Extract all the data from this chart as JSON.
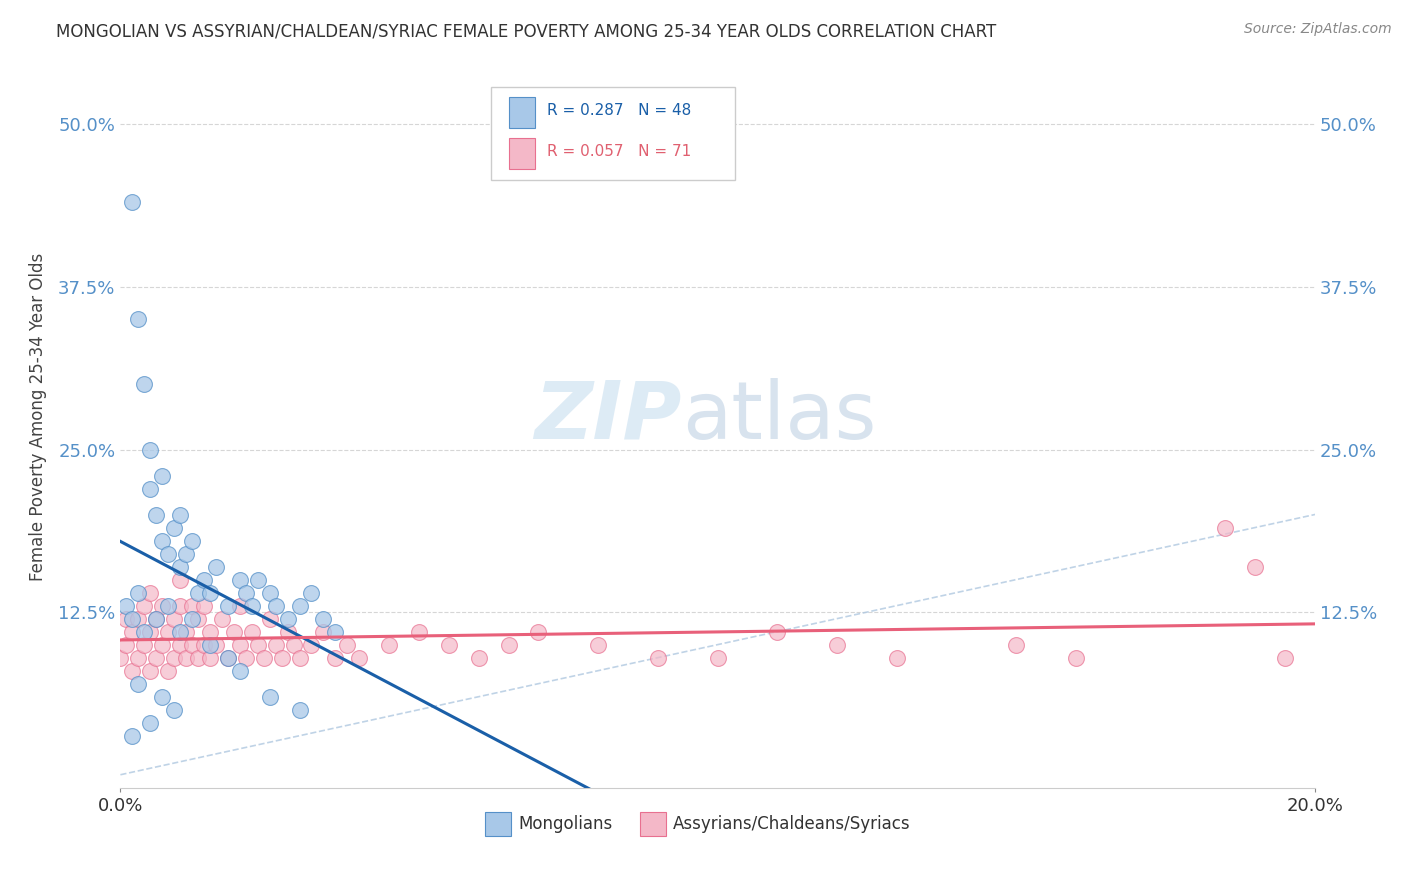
{
  "title": "MONGOLIAN VS ASSYRIAN/CHALDEAN/SYRIAC FEMALE POVERTY AMONG 25-34 YEAR OLDS CORRELATION CHART",
  "source": "Source: ZipAtlas.com",
  "ylabel": "Female Poverty Among 25-34 Year Olds",
  "xlim": [
    0.0,
    0.2
  ],
  "ylim": [
    -0.01,
    0.56
  ],
  "xticks": [
    0.0,
    0.2
  ],
  "xtick_labels": [
    "0.0%",
    "20.0%"
  ],
  "ytick_labels": [
    "12.5%",
    "25.0%",
    "37.5%",
    "50.0%"
  ],
  "yticks": [
    0.125,
    0.25,
    0.375,
    0.5
  ],
  "mongolian_color": "#a8c8e8",
  "assyrian_color": "#f4b8c8",
  "mongolian_edge": "#5590c8",
  "assyrian_edge": "#e87090",
  "trend_mongolian_color": "#1a5fa8",
  "trend_assyrian_color": "#e8607a",
  "diagonal_color": "#b0c8e0",
  "R_mongolian": 0.287,
  "N_mongolian": 48,
  "R_assyrian": 0.057,
  "N_assyrian": 71,
  "legend_mongolians": "Mongolians",
  "legend_assyrians": "Assyrians/Chaldeans/Syriacs",
  "watermark_zip": "ZIP",
  "watermark_atlas": "atlas",
  "background_color": "#ffffff",
  "mongolian_x": [
    0.002,
    0.003,
    0.004,
    0.005,
    0.005,
    0.006,
    0.007,
    0.007,
    0.008,
    0.009,
    0.01,
    0.01,
    0.011,
    0.012,
    0.013,
    0.014,
    0.015,
    0.016,
    0.018,
    0.02,
    0.021,
    0.022,
    0.023,
    0.025,
    0.026,
    0.028,
    0.03,
    0.032,
    0.034,
    0.036,
    0.001,
    0.002,
    0.003,
    0.004,
    0.006,
    0.008,
    0.01,
    0.012,
    0.015,
    0.018,
    0.02,
    0.025,
    0.03,
    0.002,
    0.003,
    0.005,
    0.007,
    0.009
  ],
  "mongolian_y": [
    0.44,
    0.35,
    0.3,
    0.22,
    0.25,
    0.2,
    0.18,
    0.23,
    0.17,
    0.19,
    0.16,
    0.2,
    0.17,
    0.18,
    0.14,
    0.15,
    0.14,
    0.16,
    0.13,
    0.15,
    0.14,
    0.13,
    0.15,
    0.14,
    0.13,
    0.12,
    0.13,
    0.14,
    0.12,
    0.11,
    0.13,
    0.12,
    0.14,
    0.11,
    0.12,
    0.13,
    0.11,
    0.12,
    0.1,
    0.09,
    0.08,
    0.06,
    0.05,
    0.03,
    0.07,
    0.04,
    0.06,
    0.05
  ],
  "assyrian_x": [
    0.0,
    0.001,
    0.001,
    0.002,
    0.002,
    0.003,
    0.003,
    0.004,
    0.004,
    0.005,
    0.005,
    0.005,
    0.006,
    0.006,
    0.007,
    0.007,
    0.008,
    0.008,
    0.009,
    0.009,
    0.01,
    0.01,
    0.01,
    0.011,
    0.011,
    0.012,
    0.012,
    0.013,
    0.013,
    0.014,
    0.014,
    0.015,
    0.015,
    0.016,
    0.017,
    0.018,
    0.019,
    0.02,
    0.02,
    0.021,
    0.022,
    0.023,
    0.024,
    0.025,
    0.026,
    0.027,
    0.028,
    0.029,
    0.03,
    0.032,
    0.034,
    0.036,
    0.038,
    0.04,
    0.045,
    0.05,
    0.055,
    0.06,
    0.065,
    0.07,
    0.08,
    0.09,
    0.1,
    0.11,
    0.12,
    0.13,
    0.15,
    0.16,
    0.185,
    0.19,
    0.195
  ],
  "assyrian_y": [
    0.09,
    0.1,
    0.12,
    0.08,
    0.11,
    0.09,
    0.12,
    0.1,
    0.13,
    0.08,
    0.11,
    0.14,
    0.09,
    0.12,
    0.1,
    0.13,
    0.08,
    0.11,
    0.09,
    0.12,
    0.1,
    0.13,
    0.15,
    0.09,
    0.11,
    0.1,
    0.13,
    0.09,
    0.12,
    0.1,
    0.13,
    0.09,
    0.11,
    0.1,
    0.12,
    0.09,
    0.11,
    0.1,
    0.13,
    0.09,
    0.11,
    0.1,
    0.09,
    0.12,
    0.1,
    0.09,
    0.11,
    0.1,
    0.09,
    0.1,
    0.11,
    0.09,
    0.1,
    0.09,
    0.1,
    0.11,
    0.1,
    0.09,
    0.1,
    0.11,
    0.1,
    0.09,
    0.09,
    0.11,
    0.1,
    0.09,
    0.1,
    0.09,
    0.19,
    0.16,
    0.09
  ]
}
